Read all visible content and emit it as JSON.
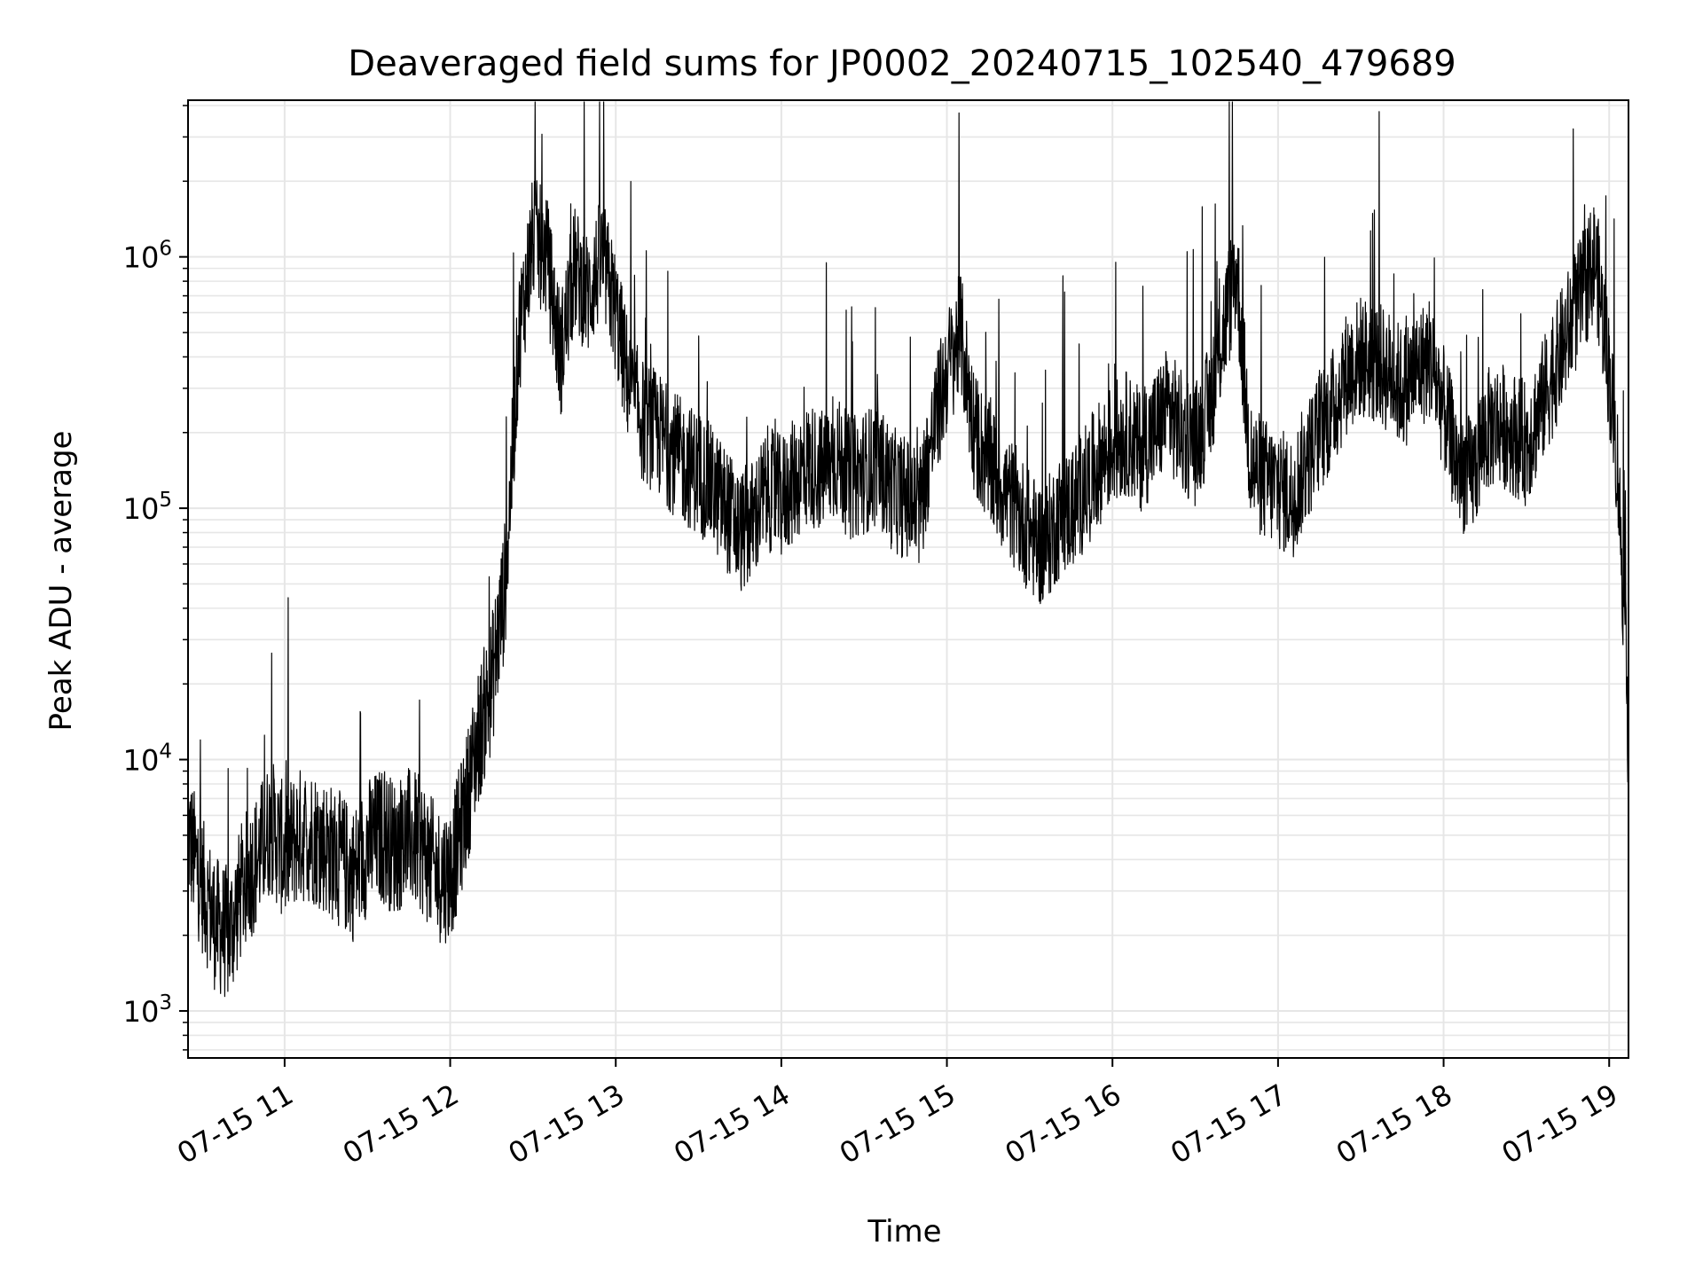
{
  "chart_data": {
    "type": "line",
    "title": "Deaveraged field sums for JP0002_20240715_102540_479689",
    "xlabel": "Time",
    "ylabel": "Peak ADU - average",
    "yscale": "log",
    "xlim": [
      "07-15 10:25",
      "07-15 19:07"
    ],
    "ylim": [
      650,
      4200000
    ],
    "grid": true,
    "line_color": "#000000",
    "grid_color": "#e6e6e6",
    "x_ticks": [
      {
        "time": "07-15 11:00",
        "label": "07-15 11"
      },
      {
        "time": "07-15 12:00",
        "label": "07-15 12"
      },
      {
        "time": "07-15 13:00",
        "label": "07-15 13"
      },
      {
        "time": "07-15 14:00",
        "label": "07-15 14"
      },
      {
        "time": "07-15 15:00",
        "label": "07-15 15"
      },
      {
        "time": "07-15 16:00",
        "label": "07-15 16"
      },
      {
        "time": "07-15 17:00",
        "label": "07-15 17"
      },
      {
        "time": "07-15 18:00",
        "label": "07-15 18"
      },
      {
        "time": "07-15 19:00",
        "label": "07-15 19"
      }
    ],
    "y_ticks": [
      {
        "value": 1000,
        "base": "10",
        "exp": "3"
      },
      {
        "value": 10000,
        "base": "10",
        "exp": "4"
      },
      {
        "value": 100000,
        "base": "10",
        "exp": "5"
      },
      {
        "value": 1000000,
        "base": "10",
        "exp": "6"
      }
    ],
    "series": [
      {
        "x": [
          "07-15 10:25",
          "07-15 10:30",
          "07-15 10:35",
          "07-15 10:40",
          "07-15 10:45",
          "07-15 10:50",
          "07-15 10:55",
          "07-15 11:00",
          "07-15 11:05",
          "07-15 11:10",
          "07-15 11:15",
          "07-15 11:20",
          "07-15 11:25",
          "07-15 11:30",
          "07-15 11:35",
          "07-15 11:40",
          "07-15 11:45",
          "07-15 11:50",
          "07-15 11:55",
          "07-15 12:00",
          "07-15 12:05",
          "07-15 12:10",
          "07-15 12:15",
          "07-15 12:20",
          "07-15 12:25",
          "07-15 12:30",
          "07-15 12:35",
          "07-15 12:40",
          "07-15 12:45",
          "07-15 12:50",
          "07-15 12:55",
          "07-15 13:00",
          "07-15 13:05",
          "07-15 13:10",
          "07-15 13:15",
          "07-15 13:20",
          "07-15 13:25",
          "07-15 13:30",
          "07-15 13:35",
          "07-15 13:40",
          "07-15 13:45",
          "07-15 13:50",
          "07-15 13:55",
          "07-15 14:00",
          "07-15 14:05",
          "07-15 14:10",
          "07-15 14:15",
          "07-15 14:20",
          "07-15 14:25",
          "07-15 14:30",
          "07-15 14:35",
          "07-15 14:40",
          "07-15 14:45",
          "07-15 14:50",
          "07-15 14:55",
          "07-15 15:00",
          "07-15 15:05",
          "07-15 15:10",
          "07-15 15:15",
          "07-15 15:20",
          "07-15 15:25",
          "07-15 15:30",
          "07-15 15:35",
          "07-15 15:40",
          "07-15 15:45",
          "07-15 15:50",
          "07-15 15:55",
          "07-15 16:00",
          "07-15 16:05",
          "07-15 16:10",
          "07-15 16:15",
          "07-15 16:20",
          "07-15 16:25",
          "07-15 16:30",
          "07-15 16:35",
          "07-15 16:40",
          "07-15 16:45",
          "07-15 16:50",
          "07-15 16:55",
          "07-15 17:00",
          "07-15 17:05",
          "07-15 17:10",
          "07-15 17:15",
          "07-15 17:20",
          "07-15 17:25",
          "07-15 17:30",
          "07-15 17:35",
          "07-15 17:40",
          "07-15 17:45",
          "07-15 17:50",
          "07-15 17:55",
          "07-15 18:00",
          "07-15 18:05",
          "07-15 18:10",
          "07-15 18:15",
          "07-15 18:20",
          "07-15 18:25",
          "07-15 18:30",
          "07-15 18:35",
          "07-15 18:40",
          "07-15 18:45",
          "07-15 18:50",
          "07-15 18:55",
          "07-15 19:00",
          "07-15 19:03",
          "07-15 19:05",
          "07-15 19:07"
        ],
        "y": [
          5000,
          3200,
          2200,
          2000,
          3200,
          4000,
          5500,
          4200,
          5000,
          5000,
          4500,
          4000,
          3500,
          4500,
          5000,
          4500,
          5000,
          4500,
          3500,
          3500,
          6000,
          12000,
          20000,
          50000,
          500000,
          1200000,
          1000000,
          400000,
          900000,
          700000,
          1000000,
          600000,
          300000,
          220000,
          200000,
          170000,
          150000,
          140000,
          120000,
          100000,
          80000,
          90000,
          120000,
          110000,
          130000,
          150000,
          140000,
          160000,
          130000,
          140000,
          150000,
          120000,
          110000,
          100000,
          200000,
          350000,
          500000,
          200000,
          150000,
          120000,
          100000,
          80000,
          70000,
          90000,
          100000,
          120000,
          150000,
          180000,
          200000,
          170000,
          200000,
          250000,
          200000,
          180000,
          250000,
          500000,
          900000,
          150000,
          130000,
          120000,
          110000,
          150000,
          200000,
          250000,
          350000,
          400000,
          380000,
          350000,
          300000,
          350000,
          400000,
          250000,
          150000,
          130000,
          200000,
          220000,
          200000,
          180000,
          250000,
          350000,
          500000,
          700000,
          1000000,
          350000,
          150000,
          50000,
          12000
        ]
      }
    ]
  }
}
